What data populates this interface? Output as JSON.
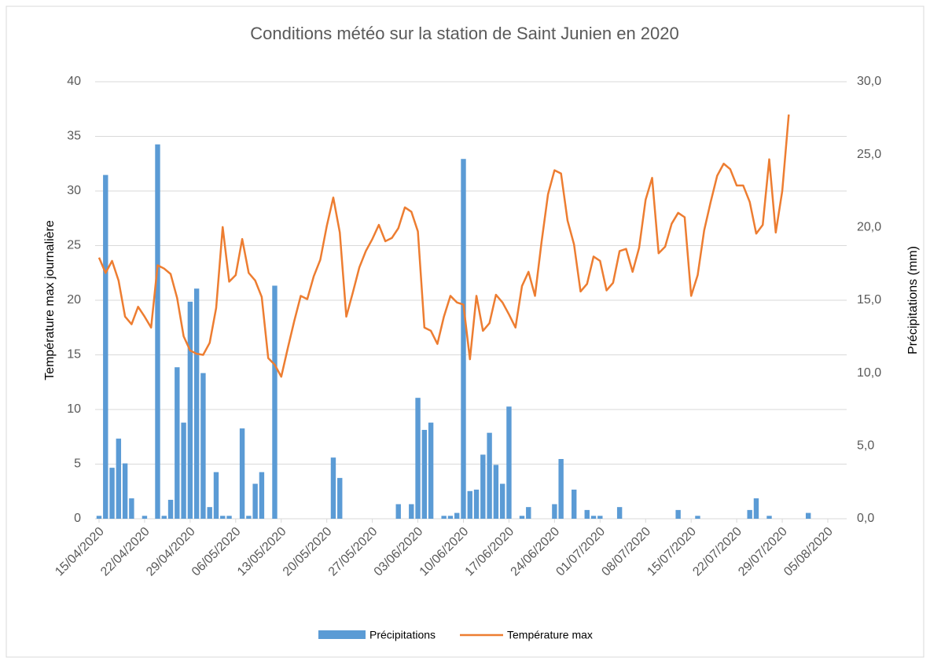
{
  "chart_data": {
    "type": "bar_line",
    "title": "Conditions météo sur la station de Saint Junien en 2020",
    "y_label": "Température max journalière",
    "y2_label": "Précipitations (mm)",
    "x": [
      "15/04/2020",
      "16/04/2020",
      "17/04/2020",
      "18/04/2020",
      "19/04/2020",
      "20/04/2020",
      "21/04/2020",
      "22/04/2020",
      "23/04/2020",
      "24/04/2020",
      "25/04/2020",
      "26/04/2020",
      "27/04/2020",
      "28/04/2020",
      "29/04/2020",
      "30/04/2020",
      "01/05/2020",
      "02/05/2020",
      "03/05/2020",
      "04/05/2020",
      "05/05/2020",
      "06/05/2020",
      "07/05/2020",
      "08/05/2020",
      "09/05/2020",
      "10/05/2020",
      "11/05/2020",
      "12/05/2020",
      "13/05/2020",
      "14/05/2020",
      "15/05/2020",
      "16/05/2020",
      "17/05/2020",
      "18/05/2020",
      "19/05/2020",
      "20/05/2020",
      "21/05/2020",
      "22/05/2020",
      "23/05/2020",
      "24/05/2020",
      "25/05/2020",
      "26/05/2020",
      "27/05/2020",
      "28/05/2020",
      "29/05/2020",
      "30/05/2020",
      "31/05/2020",
      "01/06/2020",
      "02/06/2020",
      "03/06/2020",
      "04/06/2020",
      "05/06/2020",
      "06/06/2020",
      "07/06/2020",
      "08/06/2020",
      "09/06/2020",
      "10/06/2020",
      "11/06/2020",
      "12/06/2020",
      "13/06/2020",
      "14/06/2020",
      "15/06/2020",
      "16/06/2020",
      "17/06/2020",
      "18/06/2020",
      "19/06/2020",
      "20/06/2020",
      "21/06/2020",
      "22/06/2020",
      "23/06/2020",
      "24/06/2020",
      "25/06/2020",
      "26/06/2020",
      "27/06/2020",
      "28/06/2020",
      "29/06/2020",
      "30/06/2020",
      "01/07/2020",
      "02/07/2020",
      "03/07/2020",
      "04/07/2020",
      "05/07/2020",
      "06/07/2020",
      "07/07/2020",
      "08/07/2020",
      "09/07/2020",
      "10/07/2020",
      "11/07/2020",
      "12/07/2020",
      "13/07/2020",
      "14/07/2020",
      "15/07/2020",
      "16/07/2020",
      "17/07/2020",
      "18/07/2020",
      "19/07/2020",
      "20/07/2020",
      "21/07/2020",
      "22/07/2020",
      "23/07/2020",
      "24/07/2020",
      "25/07/2020",
      "26/07/2020",
      "27/07/2020",
      "28/07/2020",
      "29/07/2020",
      "30/07/2020",
      "31/07/2020",
      "01/08/2020",
      "02/08/2020"
    ],
    "series": [
      {
        "name": "Précipitations",
        "type": "bar",
        "axis": "y2",
        "color": "#5b9bd5",
        "values": [
          0.2,
          23.6,
          3.5,
          5.5,
          3.8,
          1.4,
          0,
          0.2,
          0,
          25.7,
          0.2,
          1.3,
          10.4,
          6.6,
          14.9,
          15.8,
          10.0,
          0.8,
          3.2,
          0.2,
          0.2,
          0,
          6.2,
          0.2,
          2.4,
          3.2,
          0,
          16.0,
          0,
          0,
          0,
          0,
          0,
          0,
          0,
          0,
          4.2,
          2.8,
          0,
          0,
          0,
          0,
          0,
          0,
          0,
          0,
          1.0,
          0,
          1.0,
          8.3,
          6.1,
          6.6,
          0,
          0.2,
          0.2,
          0.4,
          24.7,
          1.9,
          2.0,
          4.4,
          5.9,
          3.7,
          2.4,
          7.7,
          0,
          0.2,
          0.8,
          0,
          0,
          0,
          1.0,
          4.1,
          0,
          2.0,
          0,
          0.6,
          0.2,
          0.2,
          0,
          0,
          0.8,
          0,
          0,
          0,
          0,
          0,
          0,
          0,
          0,
          0.6,
          0,
          0,
          0.2,
          0,
          0,
          0,
          0,
          0,
          0,
          0,
          0.6,
          1.4,
          0,
          0.2,
          0,
          0,
          0,
          0,
          0,
          0.4
        ]
      },
      {
        "name": "Température max",
        "type": "line",
        "axis": "y",
        "color": "#ed7d31",
        "values": [
          23.9,
          22.5,
          23.6,
          21.8,
          18.5,
          17.8,
          19.4,
          18.5,
          17.5,
          23.2,
          22.9,
          22.4,
          20.2,
          16.7,
          15.4,
          15.1,
          15.0,
          16.1,
          19.3,
          26.7,
          21.7,
          22.3,
          25.6,
          22.5,
          21.8,
          20.3,
          14.7,
          14.1,
          13.0,
          15.6,
          18.1,
          20.4,
          20.1,
          22.2,
          23.7,
          26.8,
          29.4,
          26.2,
          18.5,
          20.7,
          23.0,
          24.5,
          25.6,
          26.9,
          25.4,
          25.7,
          26.6,
          28.5,
          28.1,
          26.3,
          17.5,
          17.2,
          16.0,
          18.5,
          20.4,
          19.8,
          19.6,
          14.6,
          20.4,
          17.2,
          17.9,
          20.5,
          19.8,
          18.7,
          17.5,
          21.3,
          22.6,
          20.4,
          25.3,
          29.7,
          31.9,
          31.6,
          27.3,
          25.1,
          20.8,
          21.5,
          24.0,
          23.6,
          20.9,
          21.6,
          24.5,
          24.7,
          22.6,
          24.8,
          29.2,
          31.2,
          24.3,
          24.9,
          27.0,
          28.0,
          27.6,
          20.4,
          22.3,
          26.4,
          29.0,
          31.4,
          32.5,
          32.0,
          30.5,
          30.5,
          29.0,
          26.1,
          26.9,
          32.9,
          26.2,
          30.0,
          37.0,
          null,
          null,
          null
        ]
      }
    ],
    "xlim": [
      "15/04/2020",
      "05/08/2020"
    ],
    "xticks": [
      "15/04/2020",
      "22/04/2020",
      "29/04/2020",
      "06/05/2020",
      "13/05/2020",
      "20/05/2020",
      "27/05/2020",
      "03/06/2020",
      "10/06/2020",
      "17/06/2020",
      "24/06/2020",
      "01/07/2020",
      "08/07/2020",
      "15/07/2020",
      "22/07/2020",
      "29/07/2020",
      "05/08/2020"
    ],
    "ylim": [
      0,
      40
    ],
    "yticks": [
      0,
      5,
      10,
      15,
      20,
      25,
      30,
      35,
      40
    ],
    "y2lim": [
      0,
      30
    ],
    "y2ticks": [
      {
        "value": 0,
        "label": "0,0"
      },
      {
        "value": 5,
        "label": "5,0"
      },
      {
        "value": 10,
        "label": "10,0"
      },
      {
        "value": 15,
        "label": "15,0"
      },
      {
        "value": 20,
        "label": "20,0"
      },
      {
        "value": 25,
        "label": "25,0"
      },
      {
        "value": 30,
        "label": "30,0"
      }
    ],
    "grid": true,
    "legend": "bottom"
  }
}
